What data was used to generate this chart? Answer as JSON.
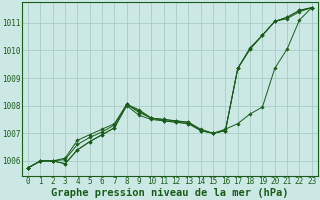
{
  "xlabel": "Graphe pression niveau de la mer (hPa)",
  "background_color": "#cce8e4",
  "line_color": "#1a5c1a",
  "grid_color": "#a0c8c0",
  "xlim": [
    -0.5,
    23.5
  ],
  "ylim": [
    1005.45,
    1011.75
  ],
  "yticks": [
    1006,
    1007,
    1008,
    1009,
    1010,
    1011
  ],
  "xticks": [
    0,
    1,
    2,
    3,
    4,
    5,
    6,
    7,
    8,
    9,
    10,
    11,
    12,
    13,
    14,
    15,
    16,
    17,
    18,
    19,
    20,
    21,
    22,
    23
  ],
  "series": [
    [
      1005.75,
      1006.0,
      1006.0,
      1005.9,
      1006.4,
      1006.7,
      1006.95,
      1007.2,
      1008.05,
      1007.75,
      1007.55,
      1007.45,
      1007.4,
      1007.35,
      1007.1,
      1007.0,
      1007.1,
      1009.35,
      1010.05,
      1010.55,
      1011.05,
      1011.15,
      1011.4,
      1011.55
    ],
    [
      1005.75,
      1006.0,
      1006.0,
      1006.05,
      1006.6,
      1006.85,
      1007.05,
      1007.3,
      1008.05,
      1007.85,
      1007.55,
      1007.5,
      1007.45,
      1007.4,
      1007.15,
      1007.0,
      1007.1,
      1009.35,
      1010.05,
      1010.55,
      1011.05,
      1011.2,
      1011.45,
      1011.55
    ],
    [
      1005.75,
      1006.0,
      1006.0,
      1006.1,
      1006.75,
      1006.95,
      1007.15,
      1007.35,
      1008.05,
      1007.8,
      1007.55,
      1007.5,
      1007.45,
      1007.4,
      1007.1,
      1007.0,
      1007.1,
      1009.35,
      1010.1,
      1010.55,
      1011.05,
      1011.2,
      1011.45,
      1011.55
    ],
    [
      1005.75,
      1006.0,
      1006.0,
      1005.9,
      1006.4,
      1006.7,
      1006.95,
      1007.2,
      1008.0,
      1007.65,
      1007.5,
      1007.45,
      1007.4,
      1007.35,
      1007.1,
      1007.0,
      1007.15,
      1007.35,
      1007.7,
      1007.95,
      1009.35,
      1010.05,
      1011.1,
      1011.55
    ]
  ],
  "xlabel_fontsize": 7.5,
  "tick_fontsize": 5.5
}
